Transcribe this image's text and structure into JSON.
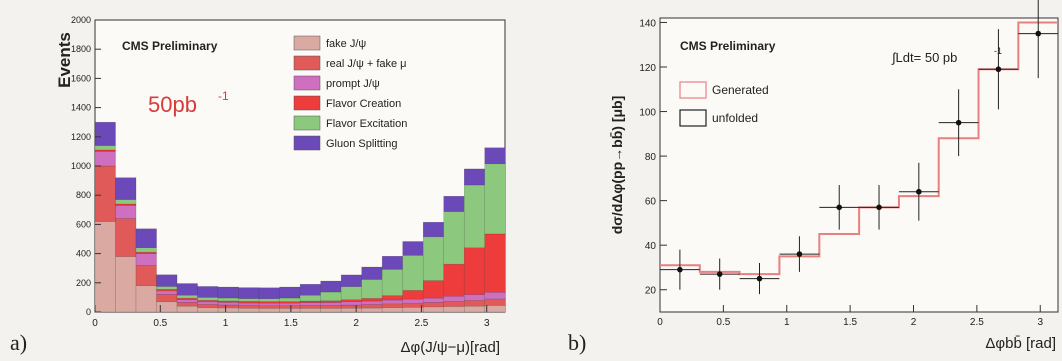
{
  "panels": {
    "a_label": "a)",
    "b_label": "b)"
  },
  "chart_data": [
    {
      "type": "bar",
      "stacked": true,
      "ylabel": "Events",
      "xlabel": "Δφ(J/ψ−μ)[rad]",
      "annotation": "CMS Preliminary",
      "lumi_label": "50pb",
      "lumi_exp": "-1",
      "xlim": [
        0,
        3.14
      ],
      "ylim": [
        0,
        2000
      ],
      "yticks": [
        0,
        200,
        400,
        600,
        800,
        1000,
        1200,
        1400,
        1600,
        1800,
        2000
      ],
      "xticks": [
        0,
        0.5,
        1,
        1.5,
        2,
        2.5,
        3
      ],
      "bin_width": 0.1571,
      "legend_position": "top-right",
      "series": [
        {
          "name": "fake J/ψ",
          "color": "#d9a9a2",
          "values": [
            620,
            380,
            180,
            70,
            40,
            30,
            28,
            26,
            25,
            25,
            25,
            25,
            26,
            27,
            30,
            32,
            35,
            38,
            40,
            45
          ]
        },
        {
          "name": "real J/ψ + fake μ",
          "color": "#e05a5a",
          "values": [
            380,
            260,
            140,
            50,
            25,
            22,
            20,
            18,
            18,
            18,
            20,
            20,
            22,
            24,
            26,
            28,
            30,
            35,
            40,
            45
          ]
        },
        {
          "name": "prompt J/ψ",
          "color": "#cf6fc0",
          "values": [
            100,
            90,
            80,
            25,
            20,
            18,
            18,
            18,
            18,
            18,
            20,
            20,
            22,
            24,
            26,
            28,
            30,
            35,
            40,
            45
          ]
        },
        {
          "name": "Flavor Creation",
          "color": "#ee3b3b",
          "values": [
            10,
            10,
            10,
            10,
            10,
            10,
            10,
            10,
            10,
            10,
            10,
            12,
            14,
            18,
            30,
            60,
            120,
            220,
            320,
            400
          ]
        },
        {
          "name": "Flavor Excitation",
          "color": "#8cc97f",
          "values": [
            30,
            30,
            30,
            20,
            20,
            20,
            20,
            20,
            20,
            25,
            40,
            60,
            90,
            130,
            180,
            240,
            300,
            360,
            430,
            480
          ]
        },
        {
          "name": "Gluon Splitting",
          "color": "#6b49b8",
          "values": [
            160,
            150,
            130,
            80,
            80,
            75,
            75,
            75,
            75,
            75,
            75,
            75,
            80,
            85,
            90,
            95,
            100,
            105,
            110,
            110
          ]
        }
      ]
    },
    {
      "type": "line",
      "ylabel": "dσ/dΔφ(pp→bb̄) [μb]",
      "xlabel": "Δφbb̄ [rad]",
      "annotation": "CMS Preliminary",
      "lumi_label": "∫Ldt= 50 pb",
      "lumi_exp": "-1",
      "xlim": [
        0,
        3.14
      ],
      "ylim": [
        10,
        142
      ],
      "yticks": [
        20,
        40,
        60,
        80,
        100,
        120,
        140
      ],
      "xticks": [
        0,
        0.5,
        1,
        1.5,
        2,
        2.5,
        3
      ],
      "legend_position": "top-left",
      "bin_edges": [
        0,
        0.314,
        0.628,
        0.942,
        1.257,
        1.571,
        1.885,
        2.199,
        2.513,
        2.827,
        3.14
      ],
      "series": [
        {
          "name": "Generated",
          "color": "#e88080",
          "values": [
            31,
            28,
            27,
            35,
            45,
            57,
            62,
            88,
            119,
            140
          ]
        },
        {
          "name": "unfolded",
          "color": "#222222",
          "x": [
            0.157,
            0.471,
            0.785,
            1.1,
            1.414,
            1.728,
            2.042,
            2.356,
            2.67,
            2.984
          ],
          "values": [
            29,
            27,
            25,
            36,
            57,
            57,
            64,
            95,
            119,
            135
          ],
          "errors": [
            9,
            7,
            7,
            8,
            10,
            10,
            13,
            15,
            18,
            20
          ]
        }
      ]
    }
  ]
}
